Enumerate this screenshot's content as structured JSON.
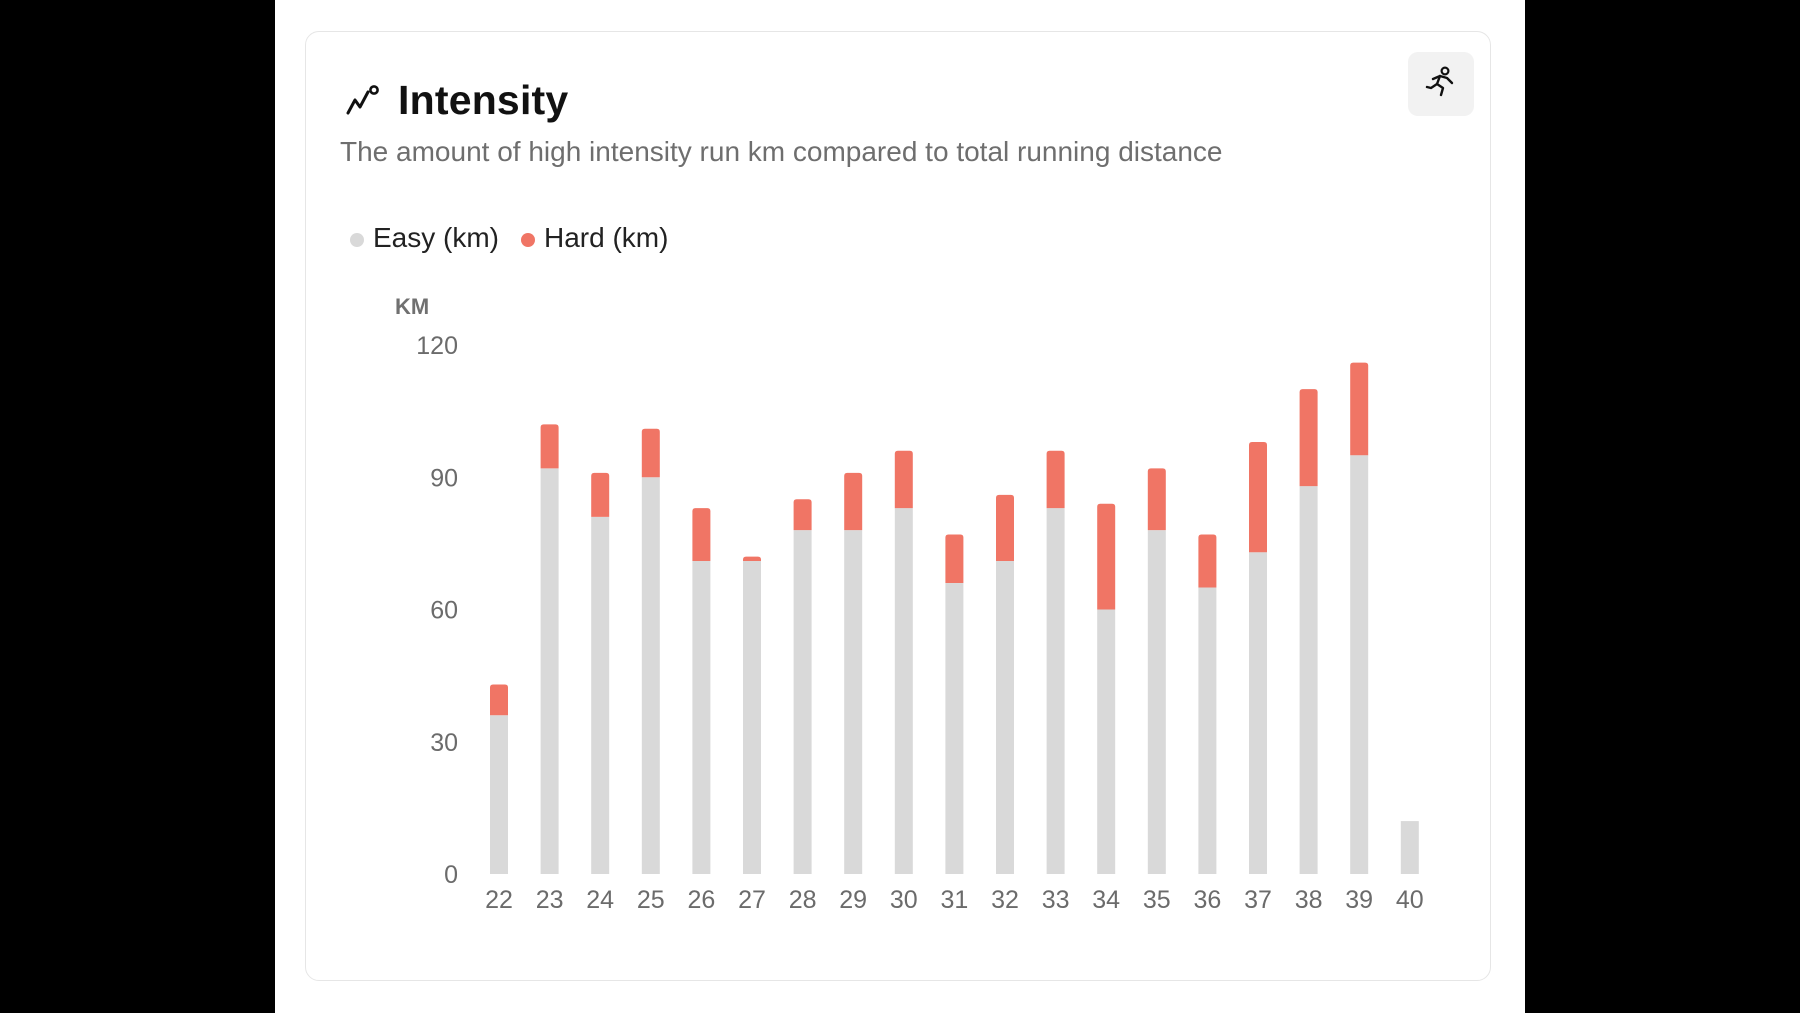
{
  "card": {
    "title": "Intensity",
    "subtitle": "The amount of high intensity run km compared to total running distance",
    "title_icon": "trend-line-icon",
    "action_icon": "runner-icon"
  },
  "legend": {
    "easy_label": "Easy (km)",
    "hard_label": "Hard (km)"
  },
  "colors": {
    "easy": "#d9d9d9",
    "hard": "#f07565"
  },
  "chart_data": {
    "type": "bar",
    "stacked": true,
    "ylabel": "KM",
    "ylim": [
      0,
      120
    ],
    "yticks": [
      0,
      30,
      60,
      90,
      120
    ],
    "grid": false,
    "legend_position": "top-left",
    "categories": [
      "22",
      "23",
      "24",
      "25",
      "26",
      "27",
      "28",
      "29",
      "30",
      "31",
      "32",
      "33",
      "34",
      "35",
      "36",
      "37",
      "38",
      "39",
      "40"
    ],
    "series": [
      {
        "name": "Easy (km)",
        "values": [
          36,
          92,
          81,
          90,
          71,
          71,
          78,
          78,
          83,
          66,
          71,
          83,
          60,
          78,
          65,
          73,
          88,
          95,
          12
        ]
      },
      {
        "name": "Hard (km)",
        "values": [
          7,
          10,
          10,
          11,
          12,
          1,
          7,
          13,
          13,
          11,
          15,
          13,
          24,
          14,
          12,
          25,
          22,
          21,
          0
        ]
      }
    ]
  }
}
